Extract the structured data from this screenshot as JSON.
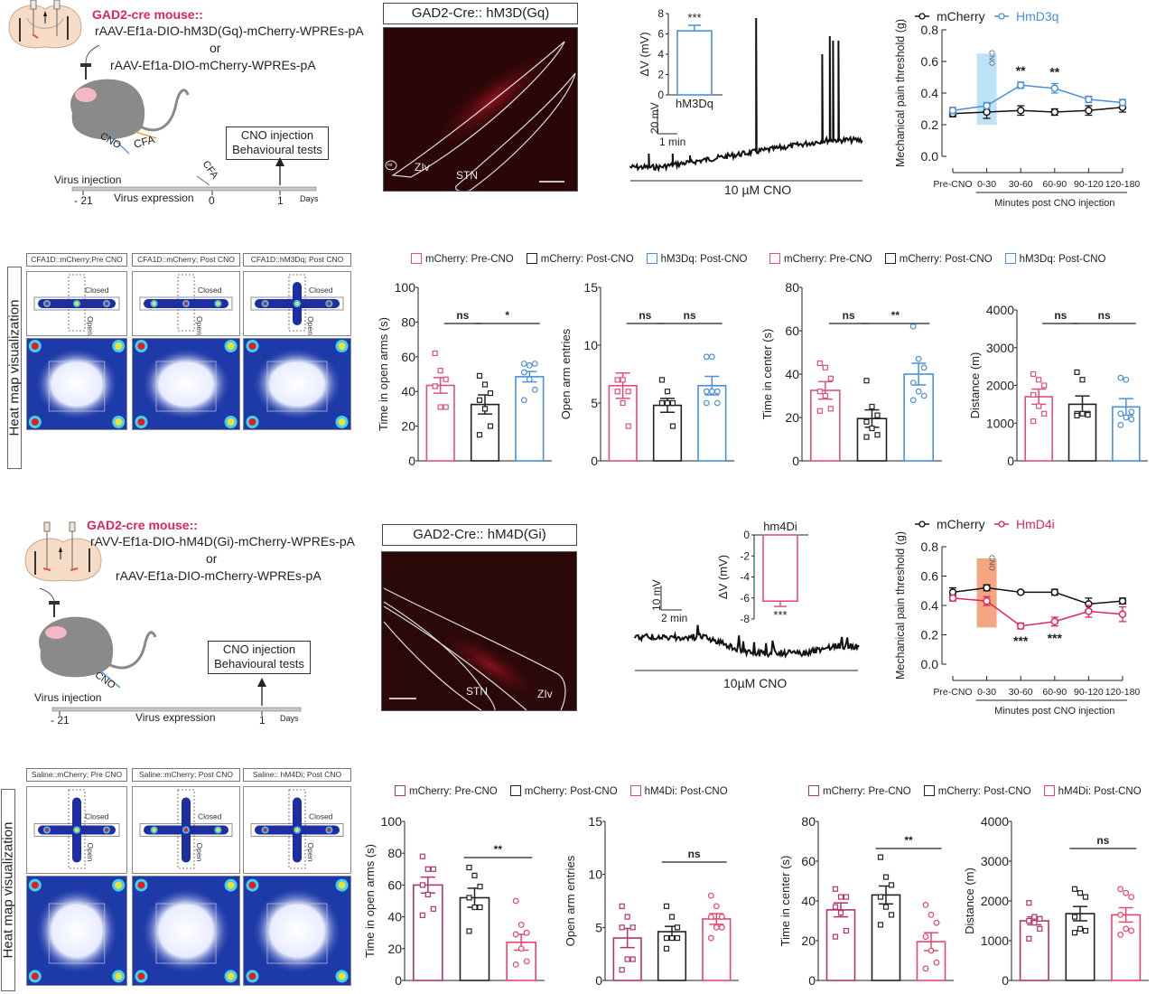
{
  "panelA": {
    "title": "GAD2-cre mouse::",
    "line1": "rAAV-Ef1a-DIO-hM3D(Gq)-mCherry-WPREs-pA",
    "or": "or",
    "line2": "rAAV-Ef1a-DIO-mCherry-WPREs-pA",
    "box_line1": "CNO injection",
    "box_line2": "Behavioural tests",
    "cno": "CNO",
    "cfa": "CFA",
    "cfa_timeline": "CFA",
    "virus_injection": "Virus injection",
    "virus_expression": "Virus expression",
    "tick1": "- 21",
    "tick2": "0",
    "tick3": "1",
    "days": "Days"
  },
  "imageA": {
    "title": "GAD2-Cre:: hM3D(Gq)",
    "label_zlv": "ZIv",
    "label_stn": "STN",
    "label_mt": "mt"
  },
  "traceA": {
    "scale_v": "20 mV",
    "scale_t": "1 min",
    "drug": "10 µM CNO",
    "inset": {
      "ylabel": "ΔV (mV)",
      "ticks": [
        "0",
        "2",
        "4",
        "6",
        "8"
      ],
      "category": "hM3Dq",
      "value": 6.3,
      "sem": 0.55,
      "ymax": 8,
      "sig": "***",
      "color": "#4a90d9"
    }
  },
  "lineA": {
    "legend": [
      "mCherry",
      "HmD3q"
    ],
    "ylabel": "Mechanical pain threshold (g)",
    "xlabel": "Minutes post CNO injection",
    "cno_label": "CNO",
    "yticks": [
      "0.0",
      "0.2",
      "0.4",
      "0.6",
      "0.8"
    ],
    "categories": [
      "Pre-CNO",
      "0-30",
      "30-60",
      "60-90",
      "90-120",
      "120-180"
    ],
    "sig": [
      "**",
      "**"
    ],
    "colors": {
      "mCherry": "#111111",
      "treat": "#4a90d9",
      "band": "#bde3f7"
    }
  },
  "heatA": {
    "side_label": "Heat map visualization",
    "labels": [
      "CFA1D::mCherry;Pre CNO",
      "CFA1D::mCherry; Post CNO",
      "CFA1D::hM3Dq; Post CNO"
    ],
    "closed": "Closed",
    "open": "Open"
  },
  "barsA": {
    "legend": [
      "mCherry: Pre-CNO",
      "mCherry: Post-CNO",
      "hM3Dq: Post-CNO"
    ],
    "colors": [
      "#e0507a",
      "#222222",
      "#4a90d9"
    ],
    "charts": [
      {
        "ylabel": "Time in open arms (s)",
        "yticks": [
          "0",
          "20",
          "40",
          "60",
          "80",
          "100"
        ],
        "sig": [
          "ns",
          "*"
        ]
      },
      {
        "ylabel": "Open arm entries",
        "yticks": [
          "0",
          "5",
          "10",
          "15"
        ],
        "sig": [
          "ns",
          "ns"
        ]
      },
      {
        "ylabel": "Time in center (s)",
        "yticks": [
          "0",
          "20",
          "40",
          "60",
          "80"
        ],
        "sig": [
          "ns",
          "**"
        ]
      },
      {
        "ylabel": "Distance (m)",
        "yticks": [
          "0",
          "1000",
          "2000",
          "3000",
          "4000"
        ],
        "sig": [
          "ns",
          "ns"
        ]
      }
    ]
  },
  "panelC": {
    "title": "GAD2-cre mouse::",
    "line1": "rAVV-Ef1a-DIO-hM4D(Gi)-mCherry-WPREs-pA",
    "or": "or",
    "line2": "rAAV-Ef1a-DIO-mCherry-WPREs-pA",
    "box_line1": "CNO injection",
    "box_line2": "Behavioural tests",
    "cno": "CNO",
    "virus_injection": "Virus injection",
    "virus_expression": "Virus expression",
    "tick1": "- 21",
    "tick3": "1",
    "days": "Days"
  },
  "imageC": {
    "title": "GAD2-Cre:: hM4D(Gi)",
    "label_stn": "STN",
    "label_zlv": "ZIv"
  },
  "traceC": {
    "scale_v": "10 mV",
    "scale_t": "2 min",
    "drug": "10µM CNO",
    "inset": {
      "ylabel": "ΔV (mV)",
      "ticks": [
        "0",
        "-2",
        "-4",
        "-6",
        "-8"
      ],
      "category": "hm4Di",
      "value": -6.3,
      "sem": 0.5,
      "ymin": -8,
      "sig": "***",
      "color": "#e0507a"
    }
  },
  "lineC": {
    "legend": [
      "mCherry",
      "HmD4i"
    ],
    "ylabel": "Mechanical pain threshold (g)",
    "xlabel": "Minutes post CNO injection",
    "cno_label": "CNO",
    "yticks": [
      "0.0",
      "0.2",
      "0.4",
      "0.6",
      "0.8"
    ],
    "categories": [
      "Pre-CNO",
      "0-30",
      "30-60",
      "60-90",
      "90-120",
      "120-180"
    ],
    "sig": [
      "***",
      "***"
    ],
    "colors": {
      "mCherry": "#111111",
      "treat": "#e0245e",
      "band": "#f4a582"
    }
  },
  "heatC": {
    "side_label": "Heat map visualization",
    "labels": [
      "Saline::mCherry; Pre CNO",
      "Saline::mCherry; Post CNO",
      "Saline:: hM4Di; Post CNO"
    ],
    "closed": "Closed",
    "open": "Open"
  },
  "barsC": {
    "legend": [
      "mCherry: Pre-CNO",
      "mCherry: Post-CNO",
      "hM4Di: Post-CNO"
    ],
    "colors": [
      "#b0346e",
      "#222222",
      "#e8456b"
    ],
    "charts": [
      {
        "ylabel": "Time in open arms (s)",
        "yticks": [
          "0",
          "20",
          "40",
          "60",
          "80",
          "100"
        ],
        "sig": [
          "**"
        ]
      },
      {
        "ylabel": "Open arm entries",
        "yticks": [
          "0",
          "5",
          "10",
          "15"
        ],
        "sig": [
          "ns"
        ]
      },
      {
        "ylabel": "Time in center (s)",
        "yticks": [
          "0",
          "20",
          "40",
          "60",
          "80"
        ],
        "sig": [
          "**"
        ]
      },
      {
        "ylabel": "Distance (m)",
        "yticks": [
          "0",
          "1000",
          "2000",
          "3000",
          "4000"
        ],
        "sig": [
          "ns"
        ]
      }
    ]
  },
  "chart_data": [
    {
      "type": "line",
      "title": "",
      "xlabel": "Minutes post CNO injection",
      "ylabel": "Mechanical pain threshold (g)",
      "categories": [
        "Pre-CNO",
        "0-30",
        "30-60",
        "60-90",
        "90-120",
        "120-180"
      ],
      "ylim": [
        0,
        0.8
      ],
      "series": [
        {
          "name": "mCherry",
          "values": [
            0.27,
            0.28,
            0.29,
            0.28,
            0.29,
            0.31
          ],
          "sem": [
            0.02,
            0.04,
            0.03,
            0.02,
            0.03,
            0.03
          ]
        },
        {
          "name": "HmD3q",
          "values": [
            0.29,
            0.32,
            0.45,
            0.43,
            0.36,
            0.34
          ],
          "sem": [
            0.02,
            0.02,
            0.02,
            0.03,
            0.02,
            0.02
          ]
        }
      ],
      "annotations": [
        {
          "category": "30-60",
          "text": "**"
        },
        {
          "category": "60-90",
          "text": "**"
        }
      ],
      "cno_band": {
        "from": 0.2,
        "to": 0.65
      }
    },
    {
      "type": "bar",
      "title": "",
      "ylabel": "Time in open arms (s)",
      "ylim": [
        0,
        100
      ],
      "categories": [
        "mCherry: Pre-CNO",
        "mCherry: Post-CNO",
        "hM3Dq: Post-CNO"
      ],
      "values": [
        43.5,
        32.5,
        48.5
      ],
      "sem": [
        4.5,
        5.5,
        3
      ],
      "points": [
        [
          62,
          52,
          47,
          43,
          31,
          31,
          43
        ],
        [
          49,
          44,
          39,
          35,
          30,
          20,
          15
        ],
        [
          56,
          55,
          56,
          51,
          47,
          41,
          35
        ]
      ],
      "comparisons": [
        {
          "pair": [
            0,
            1
          ],
          "text": "ns"
        },
        {
          "pair": [
            1,
            2
          ],
          "text": "*"
        }
      ]
    },
    {
      "type": "bar",
      "title": "",
      "ylabel": "Open arm entries",
      "ylim": [
        0,
        15
      ],
      "categories": [
        "mCherry: Pre-CNO",
        "mCherry: Post-CNO",
        "hM3Dq: Post-CNO"
      ],
      "values": [
        6.5,
        4.8,
        6.5
      ],
      "sem": [
        1.1,
        0.6,
        0.8
      ],
      "points": [
        [
          7,
          7,
          6,
          6,
          5,
          3,
          6
        ],
        [
          7,
          6,
          5,
          5,
          5,
          3,
          5
        ],
        [
          9,
          9,
          6,
          6,
          6,
          5,
          5
        ]
      ],
      "comparisons": [
        {
          "pair": [
            0,
            1
          ],
          "text": "ns"
        },
        {
          "pair": [
            1,
            2
          ],
          "text": "ns"
        }
      ]
    },
    {
      "type": "bar",
      "title": "",
      "ylabel": "Time in center (s)",
      "ylim": [
        0,
        80
      ],
      "categories": [
        "mCherry: Pre-CNO",
        "mCherry: Post-CNO",
        "hM3Dq: Post-CNO"
      ],
      "values": [
        32.5,
        19.5,
        40
      ],
      "sem": [
        4,
        4,
        5
      ],
      "points": [
        [
          45,
          43,
          38,
          32,
          30,
          24,
          23
        ],
        [
          37,
          25,
          21,
          18,
          15,
          12,
          11
        ],
        [
          62,
          47,
          43,
          36,
          32,
          30,
          28
        ]
      ],
      "comparisons": [
        {
          "pair": [
            0,
            1
          ],
          "text": "ns"
        },
        {
          "pair": [
            1,
            2
          ],
          "text": "**"
        }
      ]
    },
    {
      "type": "bar",
      "title": "",
      "ylabel": "Distance (m)",
      "ylim": [
        0,
        4000
      ],
      "categories": [
        "mCherry: Pre-CNO",
        "mCherry: Post-CNO",
        "hM3Dq: Post-CNO"
      ],
      "values": [
        1700,
        1500,
        1430
      ],
      "sem": [
        200,
        220,
        220
      ],
      "points": [
        [
          2300,
          2150,
          2000,
          1750,
          1450,
          1250,
          1050
        ],
        [
          2350,
          2150,
          1250,
          1250,
          1250,
          1220,
          1200
        ],
        [
          2200,
          2150,
          1300,
          1250,
          1150,
          1100,
          950
        ]
      ],
      "comparisons": [
        {
          "pair": [
            0,
            1
          ],
          "text": "ns"
        },
        {
          "pair": [
            1,
            2
          ],
          "text": "ns"
        }
      ]
    },
    {
      "type": "line",
      "title": "",
      "xlabel": "Minutes post CNO injection",
      "ylabel": "Mechanical pain threshold (g)",
      "categories": [
        "Pre-CNO",
        "0-30",
        "30-60",
        "60-90",
        "90-120",
        "120-180"
      ],
      "ylim": [
        0,
        0.8
      ],
      "series": [
        {
          "name": "mCherry",
          "values": [
            0.49,
            0.52,
            0.49,
            0.49,
            0.41,
            0.43
          ],
          "sem": [
            0.03,
            0.02,
            0.01,
            0.02,
            0.04,
            0.02
          ]
        },
        {
          "name": "HmD4i",
          "values": [
            0.45,
            0.43,
            0.26,
            0.29,
            0.36,
            0.34
          ],
          "sem": [
            0.02,
            0.03,
            0.02,
            0.03,
            0.04,
            0.05
          ]
        }
      ],
      "annotations": [
        {
          "category": "30-60",
          "text": "***"
        },
        {
          "category": "60-90",
          "text": "***"
        }
      ],
      "cno_band": {
        "from": 0.25,
        "to": 0.72
      }
    },
    {
      "type": "bar",
      "title": "",
      "ylabel": "Time in open arms (s)",
      "ylim": [
        0,
        100
      ],
      "categories": [
        "mCherry: Pre-CNO",
        "mCherry: Post-CNO",
        "hM4Di: Post-CNO"
      ],
      "values": [
        60,
        52,
        24
      ],
      "sem": [
        5,
        6,
        5
      ],
      "points": [
        [
          78,
          70,
          70,
          60,
          54,
          45,
          41
        ],
        [
          71,
          66,
          59,
          52,
          46,
          46,
          31
        ],
        [
          50,
          35,
          30,
          29,
          20,
          12,
          10
        ]
      ],
      "comparisons": [
        {
          "pair": [
            1,
            2
          ],
          "text": "**"
        }
      ]
    },
    {
      "type": "bar",
      "title": "",
      "ylabel": "Open arm entries",
      "ylim": [
        0,
        15
      ],
      "categories": [
        "mCherry: Pre-CNO",
        "mCherry: Post-CNO",
        "hM4Di: Post-CNO"
      ],
      "values": [
        4,
        4.6,
        5.8
      ],
      "sem": [
        0.9,
        0.5,
        0.5
      ],
      "points": [
        [
          7,
          6,
          5,
          5,
          2,
          2,
          1
        ],
        [
          7,
          6,
          5,
          4,
          4,
          4,
          3
        ],
        [
          8,
          7,
          6,
          6,
          5,
          5,
          4
        ]
      ],
      "comparisons": [
        {
          "pair": [
            1,
            2
          ],
          "text": "ns"
        }
      ]
    },
    {
      "type": "bar",
      "title": "",
      "ylabel": "Time in center (s)",
      "ylim": [
        0,
        80
      ],
      "categories": [
        "mCherry: Pre-CNO",
        "mCherry: Post-CNO",
        "hM4Di: Post-CNO"
      ],
      "values": [
        35.5,
        43,
        19.5
      ],
      "sem": [
        3.5,
        4.5,
        4.5
      ],
      "points": [
        [
          46,
          42,
          42,
          37,
          34,
          25,
          22
        ],
        [
          62,
          52,
          48,
          42,
          37,
          33,
          28
        ],
        [
          38,
          33,
          29,
          22,
          15,
          9,
          6
        ]
      ],
      "comparisons": [
        {
          "pair": [
            1,
            2
          ],
          "text": "**"
        }
      ]
    },
    {
      "type": "bar",
      "title": "",
      "ylabel": "Distance (m)",
      "ylim": [
        0,
        4000
      ],
      "categories": [
        "mCherry: Pre-CNO",
        "mCherry: Post-CNO",
        "hM4Di: Post-CNO"
      ],
      "values": [
        1500,
        1680,
        1650
      ],
      "sem": [
        100,
        180,
        180
      ],
      "points": [
        [
          1950,
          1600,
          1550,
          1500,
          1450,
          1300,
          1050
        ],
        [
          2300,
          2200,
          2100,
          1600,
          1300,
          1250,
          1200
        ],
        [
          2300,
          2200,
          2100,
          1650,
          1300,
          1250,
          1150
        ]
      ],
      "comparisons": [
        {
          "pair": [
            1,
            2
          ],
          "text": "ns"
        }
      ]
    }
  ]
}
